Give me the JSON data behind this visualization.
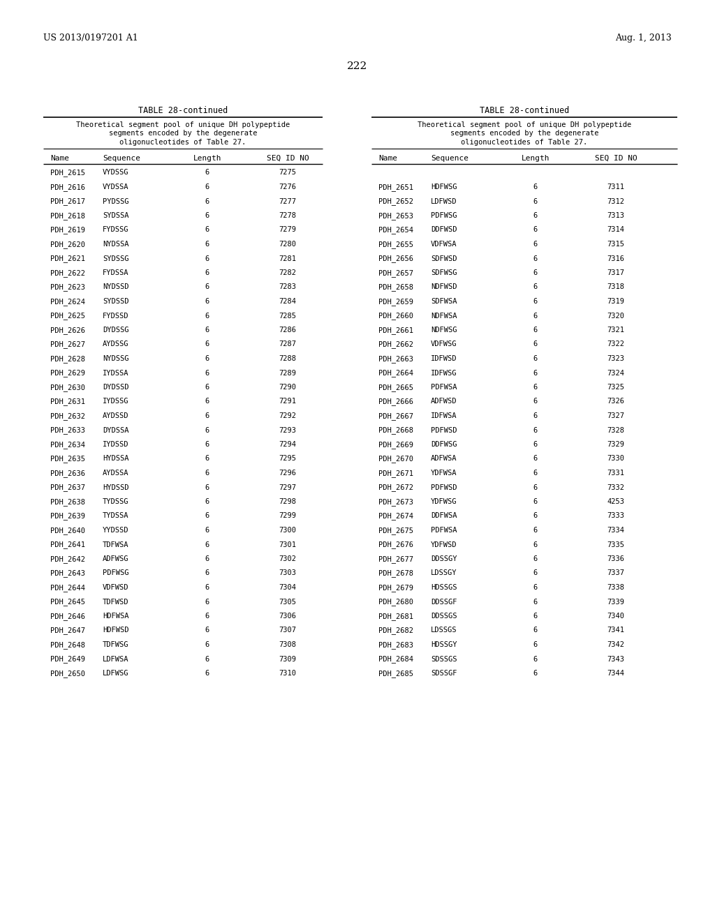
{
  "page_number": "222",
  "patent_left": "US 2013/0197201 A1",
  "patent_right": "Aug. 1, 2013",
  "table_title": "TABLE 28-continued",
  "table_subtitle_lines": [
    "Theoretical segment pool of unique DH polypeptide",
    "segments encoded by the degenerate",
    "oligonucleotides of Table 27."
  ],
  "col_headers": [
    "Name",
    "Sequence",
    "Length",
    "SEQ ID NO"
  ],
  "left_data": [
    [
      "PDH_2615",
      "VYDSSG",
      "6",
      "7275"
    ],
    [
      "PDH_2616",
      "VYDSSA",
      "6",
      "7276"
    ],
    [
      "PDH_2617",
      "PYDSSG",
      "6",
      "7277"
    ],
    [
      "PDH_2618",
      "SYDSSA",
      "6",
      "7278"
    ],
    [
      "PDH_2619",
      "FYDSSG",
      "6",
      "7279"
    ],
    [
      "PDH_2620",
      "NYDSSA",
      "6",
      "7280"
    ],
    [
      "PDH_2621",
      "SYDSSG",
      "6",
      "7281"
    ],
    [
      "PDH_2622",
      "FYDSSA",
      "6",
      "7282"
    ],
    [
      "PDH_2623",
      "NYDSSD",
      "6",
      "7283"
    ],
    [
      "PDH_2624",
      "SYDSSD",
      "6",
      "7284"
    ],
    [
      "PDH_2625",
      "FYDSSD",
      "6",
      "7285"
    ],
    [
      "PDH_2626",
      "DYDSSG",
      "6",
      "7286"
    ],
    [
      "PDH_2627",
      "AYDSSG",
      "6",
      "7287"
    ],
    [
      "PDH_2628",
      "NYDSSG",
      "6",
      "7288"
    ],
    [
      "PDH_2629",
      "IYDSSA",
      "6",
      "7289"
    ],
    [
      "PDH_2630",
      "DYDSSD",
      "6",
      "7290"
    ],
    [
      "PDH_2631",
      "IYDSSG",
      "6",
      "7291"
    ],
    [
      "PDH_2632",
      "AYDSSD",
      "6",
      "7292"
    ],
    [
      "PDH_2633",
      "DYDSSA",
      "6",
      "7293"
    ],
    [
      "PDH_2634",
      "IYDSSD",
      "6",
      "7294"
    ],
    [
      "PDH_2635",
      "HYDSSA",
      "6",
      "7295"
    ],
    [
      "PDH_2636",
      "AYDSSA",
      "6",
      "7296"
    ],
    [
      "PDH_2637",
      "HYDSSD",
      "6",
      "7297"
    ],
    [
      "PDH_2638",
      "TYDSSG",
      "6",
      "7298"
    ],
    [
      "PDH_2639",
      "TYDSSA",
      "6",
      "7299"
    ],
    [
      "PDH_2640",
      "YYDSSD",
      "6",
      "7300"
    ],
    [
      "PDH_2641",
      "TDFWSA",
      "6",
      "7301"
    ],
    [
      "PDH_2642",
      "ADFWSG",
      "6",
      "7302"
    ],
    [
      "PDH_2643",
      "PDFWSG",
      "6",
      "7303"
    ],
    [
      "PDH_2644",
      "VDFWSD",
      "6",
      "7304"
    ],
    [
      "PDH_2645",
      "TDFWSD",
      "6",
      "7305"
    ],
    [
      "PDH_2646",
      "HDFWSA",
      "6",
      "7306"
    ],
    [
      "PDH_2647",
      "HDFWSD",
      "6",
      "7307"
    ],
    [
      "PDH_2648",
      "TDFWSG",
      "6",
      "7308"
    ],
    [
      "PDH_2649",
      "LDFWSA",
      "6",
      "7309"
    ],
    [
      "PDH_2650",
      "LDFWSG",
      "6",
      "7310"
    ]
  ],
  "right_data": [
    [
      "PDH_2651",
      "HDFWSG",
      "6",
      "7311"
    ],
    [
      "PDH_2652",
      "LDFWSD",
      "6",
      "7312"
    ],
    [
      "PDH_2653",
      "PDFWSG",
      "6",
      "7313"
    ],
    [
      "PDH_2654",
      "DDFWSD",
      "6",
      "7314"
    ],
    [
      "PDH_2655",
      "VDFWSA",
      "6",
      "7315"
    ],
    [
      "PDH_2656",
      "SDFWSD",
      "6",
      "7316"
    ],
    [
      "PDH_2657",
      "SDFWSG",
      "6",
      "7317"
    ],
    [
      "PDH_2658",
      "NDFWSD",
      "6",
      "7318"
    ],
    [
      "PDH_2659",
      "SDFWSA",
      "6",
      "7319"
    ],
    [
      "PDH_2660",
      "NDFWSA",
      "6",
      "7320"
    ],
    [
      "PDH_2661",
      "NDFWSG",
      "6",
      "7321"
    ],
    [
      "PDH_2662",
      "VDFWSG",
      "6",
      "7322"
    ],
    [
      "PDH_2663",
      "IDFWSD",
      "6",
      "7323"
    ],
    [
      "PDH_2664",
      "IDFWSG",
      "6",
      "7324"
    ],
    [
      "PDH_2665",
      "PDFWSA",
      "6",
      "7325"
    ],
    [
      "PDH_2666",
      "ADFWSD",
      "6",
      "7326"
    ],
    [
      "PDH_2667",
      "IDFWSA",
      "6",
      "7327"
    ],
    [
      "PDH_2668",
      "PDFWSD",
      "6",
      "7328"
    ],
    [
      "PDH_2669",
      "DDFWSG",
      "6",
      "7329"
    ],
    [
      "PDH_2670",
      "ADFWSA",
      "6",
      "7330"
    ],
    [
      "PDH_2671",
      "YDFWSA",
      "6",
      "7331"
    ],
    [
      "PDH_2672",
      "PDFWSD",
      "6",
      "7332"
    ],
    [
      "PDH_2673",
      "YDFWSG",
      "6",
      "4253"
    ],
    [
      "PDH_2674",
      "DDFWSA",
      "6",
      "7333"
    ],
    [
      "PDH_2675",
      "PDFWSA",
      "6",
      "7334"
    ],
    [
      "PDH_2676",
      "YDFWSD",
      "6",
      "7335"
    ],
    [
      "PDH_2677",
      "DDSSGY",
      "6",
      "7336"
    ],
    [
      "PDH_2678",
      "LDSSGY",
      "6",
      "7337"
    ],
    [
      "PDH_2679",
      "HDSSGS",
      "6",
      "7338"
    ],
    [
      "PDH_2680",
      "DDSSGF",
      "6",
      "7339"
    ],
    [
      "PDH_2681",
      "DDSSGS",
      "6",
      "7340"
    ],
    [
      "PDH_2682",
      "LDSSGS",
      "6",
      "7341"
    ],
    [
      "PDH_2683",
      "HDSSGY",
      "6",
      "7342"
    ],
    [
      "PDH_2684",
      "SDSSGS",
      "6",
      "7343"
    ],
    [
      "PDH_2685",
      "SDSSGF",
      "6",
      "7344"
    ]
  ],
  "bg_color": "#ffffff",
  "text_color": "#000000"
}
